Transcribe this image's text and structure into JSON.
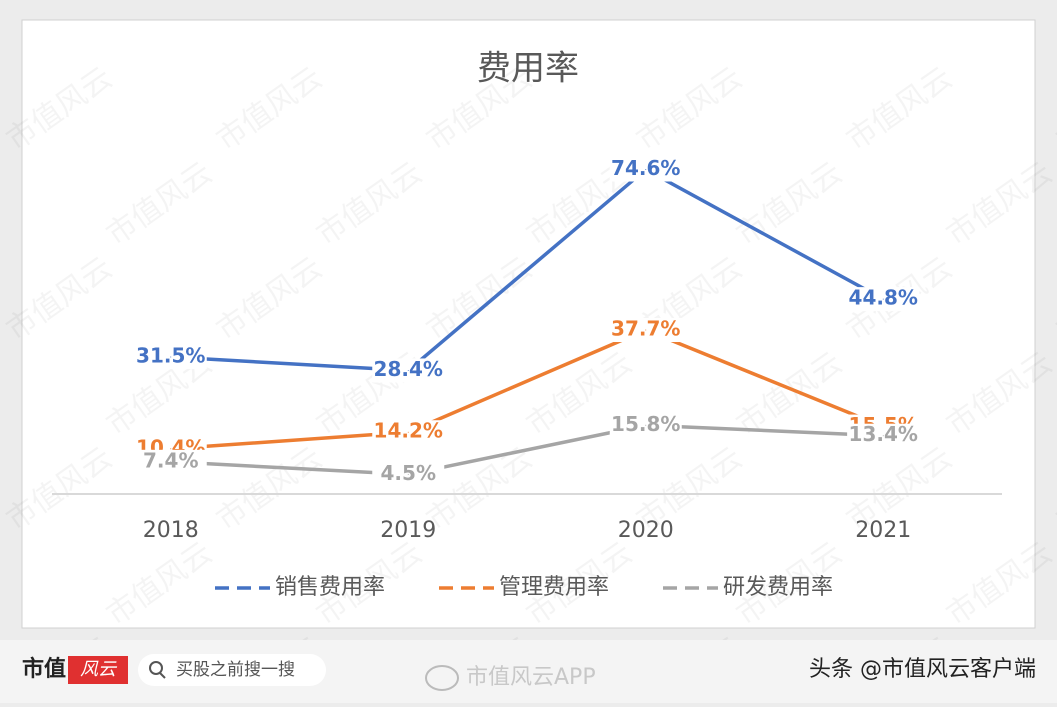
{
  "chart_data": {
    "type": "line",
    "title": "费用率",
    "categories": [
      "2018",
      "2019",
      "2020",
      "2021"
    ],
    "series": [
      {
        "name": "销售费用率",
        "color": "#4472c4",
        "values": [
          31.5,
          28.4,
          74.6,
          44.8
        ],
        "value_labels": [
          "31.5%",
          "28.4%",
          "74.6%",
          "44.8%"
        ]
      },
      {
        "name": "管理费用率",
        "color": "#ed7d31",
        "values": [
          10.4,
          14.2,
          37.7,
          15.5
        ],
        "value_labels": [
          "10.4%",
          "14.2%",
          "37.7%",
          "15.5%"
        ]
      },
      {
        "name": "研发费用率",
        "color": "#a5a5a5",
        "values": [
          7.4,
          4.5,
          15.8,
          13.4
        ],
        "value_labels": [
          "7.4%",
          "4.5%",
          "15.8%",
          "13.4%"
        ]
      }
    ]
  },
  "watermark": "市值风云",
  "footer": {
    "logo": "市值",
    "logo_script": "风云",
    "search": "买股之前搜一搜",
    "center": "市值风云APP",
    "right": "头条 @市值风云客户端"
  }
}
